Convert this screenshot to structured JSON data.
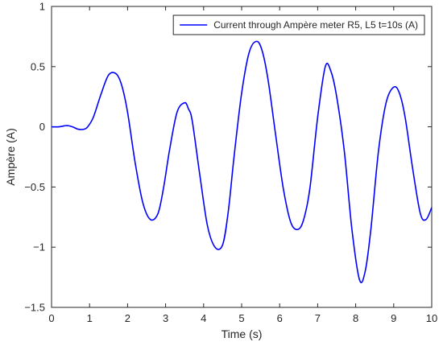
{
  "chart_data": {
    "type": "line",
    "title": "",
    "xlabel": "Time (s)",
    "ylabel": "Ampère (A)",
    "xlim": [
      0,
      10
    ],
    "ylim": [
      -1.5,
      1
    ],
    "xticks": [
      0,
      1,
      2,
      3,
      4,
      5,
      6,
      7,
      8,
      9,
      10
    ],
    "xtick_labels": [
      "0",
      "1",
      "2",
      "3",
      "4",
      "5",
      "6",
      "7",
      "8",
      "9",
      "10"
    ],
    "yticks": [
      -1.5,
      -1,
      -0.5,
      0,
      0.5,
      1
    ],
    "ytick_labels": [
      "−1.5",
      "−1",
      "−0.5",
      "0",
      "0.5",
      "1"
    ],
    "grid": false,
    "legend_position": "top-right",
    "series": [
      {
        "name": "Current through Ampère meter R5, L5 t=10s (A)",
        "color": "#0000ff",
        "x": [
          0,
          0.2,
          0.4,
          0.55,
          0.7,
          0.85,
          0.95,
          1.1,
          1.3,
          1.5,
          1.7,
          1.85,
          2.0,
          2.2,
          2.4,
          2.6,
          2.8,
          2.95,
          3.1,
          3.3,
          3.5,
          3.6,
          3.7,
          3.9,
          4.1,
          4.3,
          4.5,
          4.65,
          4.8,
          5.0,
          5.2,
          5.4,
          5.55,
          5.7,
          5.9,
          6.1,
          6.3,
          6.5,
          6.65,
          6.8,
          7.0,
          7.2,
          7.35,
          7.5,
          7.7,
          7.9,
          8.1,
          8.25,
          8.4,
          8.6,
          8.8,
          9.0,
          9.15,
          9.3,
          9.5,
          9.7,
          9.85,
          10.0
        ],
        "values": [
          0.0,
          0.0,
          0.01,
          0.0,
          -0.02,
          -0.02,
          0.0,
          0.08,
          0.27,
          0.43,
          0.44,
          0.34,
          0.12,
          -0.3,
          -0.63,
          -0.77,
          -0.72,
          -0.5,
          -0.2,
          0.12,
          0.2,
          0.15,
          0.05,
          -0.4,
          -0.82,
          -1.0,
          -0.98,
          -0.7,
          -0.25,
          0.28,
          0.62,
          0.71,
          0.62,
          0.38,
          -0.08,
          -0.52,
          -0.8,
          -0.85,
          -0.75,
          -0.5,
          0.08,
          0.5,
          0.46,
          0.25,
          -0.2,
          -0.85,
          -1.27,
          -1.2,
          -0.85,
          -0.2,
          0.2,
          0.33,
          0.28,
          0.08,
          -0.35,
          -0.72,
          -0.77,
          -0.67
        ]
      }
    ]
  }
}
